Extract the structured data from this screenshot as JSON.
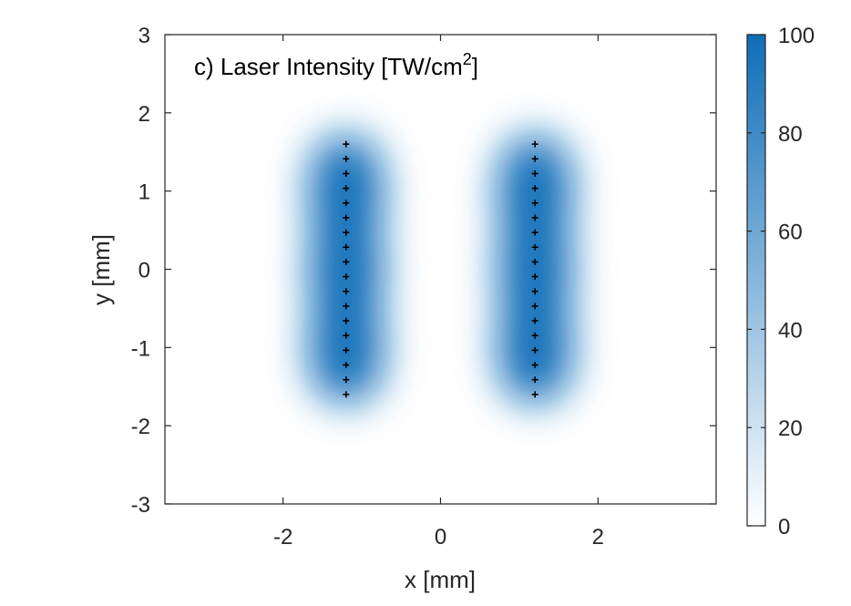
{
  "chart_data": {
    "type": "heatmap",
    "annotation": "c) Laser Intensity [TW/cm",
    "annotation_sup": "2",
    "annotation_close": "]",
    "xlabel": "x [mm]",
    "ylabel": "y [mm]",
    "xlim": [
      -3.5,
      3.5
    ],
    "ylim": [
      -3,
      3
    ],
    "xticks": [
      -2,
      0,
      2
    ],
    "xtick_labels": [
      "-2",
      "0",
      "2"
    ],
    "yticks": [
      3,
      2,
      1,
      0,
      -1,
      -2,
      -3
    ],
    "ytick_labels": [
      "3",
      "2",
      "1",
      "0",
      "-1",
      "-2",
      "-3"
    ],
    "colorbar": {
      "range": [
        0,
        100
      ],
      "ticks": [
        100,
        80,
        60,
        40,
        20,
        0
      ],
      "tick_labels": [
        "100",
        "80",
        "60",
        "40",
        "20",
        "0"
      ],
      "colormap": [
        "#ffffff",
        "#0f6eb8"
      ]
    },
    "beam_columns_x": [
      -1.2,
      1.2
    ],
    "beam_y_range": [
      -1.6,
      1.6
    ],
    "beam_points_per_column": 18,
    "grid": false,
    "colors": {
      "max": "#0f6eb8",
      "min": "#ffffff",
      "marker": "#000000"
    }
  }
}
